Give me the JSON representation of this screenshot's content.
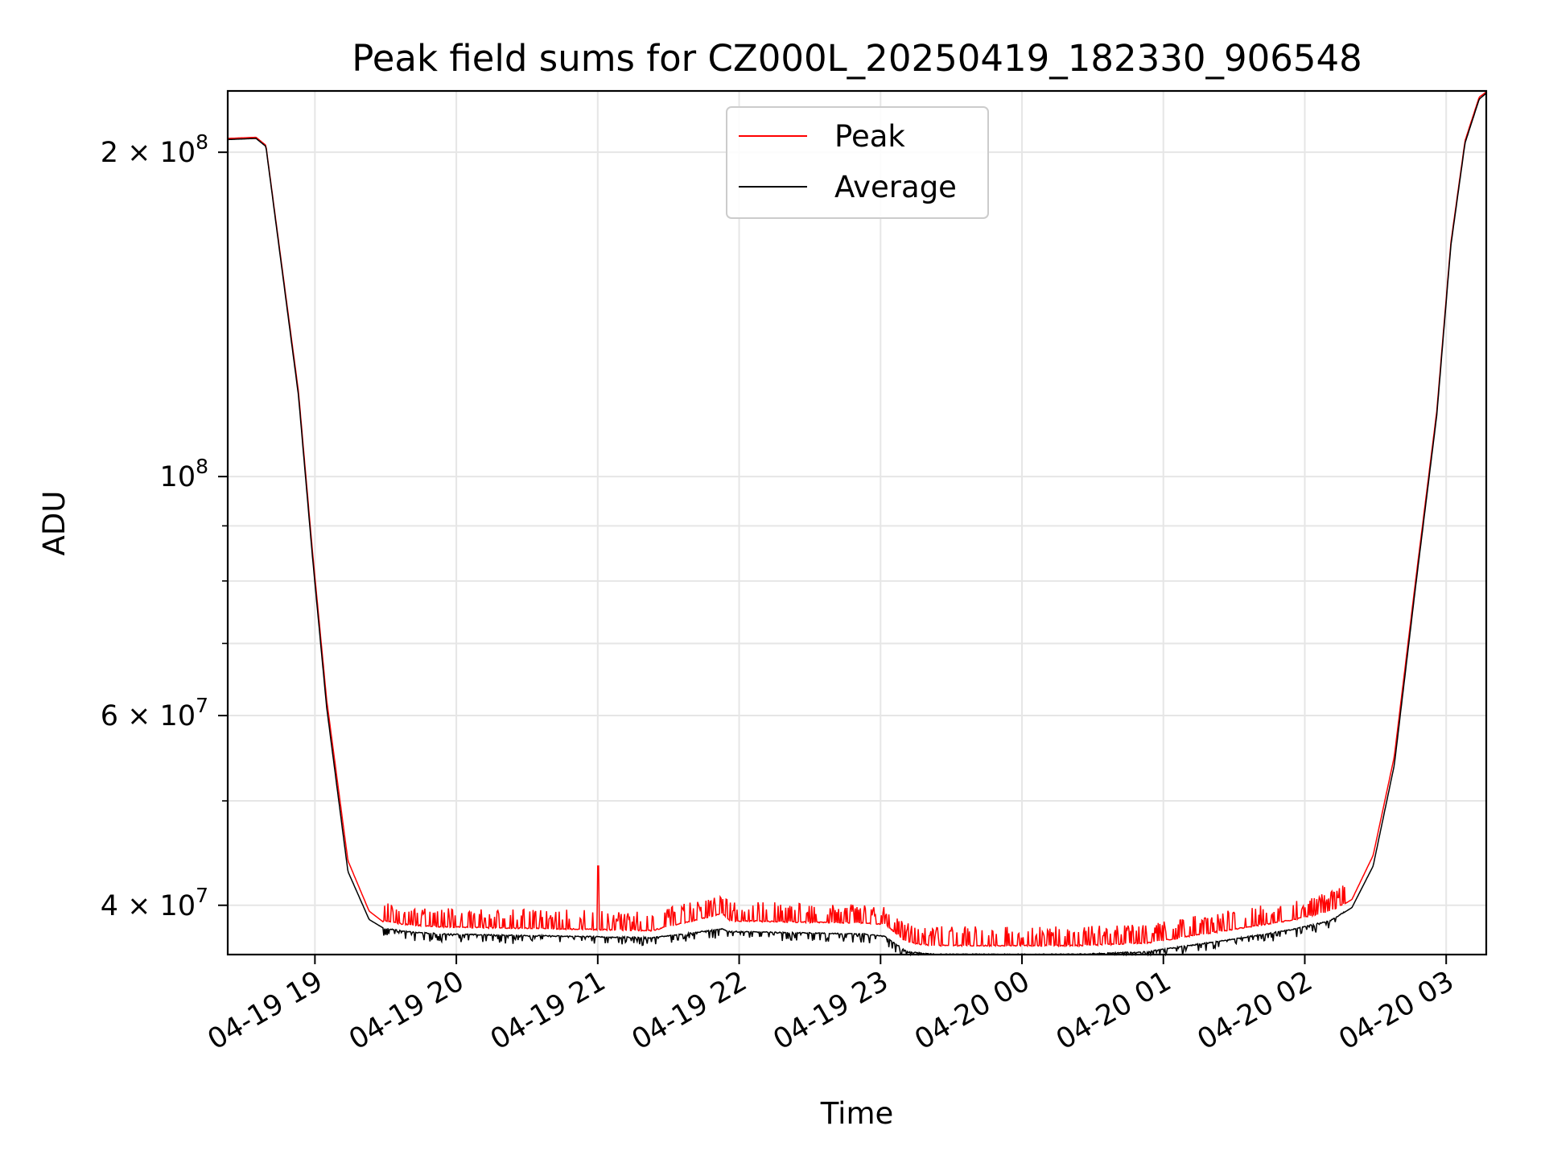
{
  "chart_data": {
    "type": "line",
    "title": "Peak field sums for CZ000L_20250419_182330_906548",
    "xlabel": "Time",
    "ylabel": "ADU",
    "yscale": "log",
    "ylim": [
      36000000,
      228000000
    ],
    "xlim": [
      "2025-04-19 18:23",
      "2025-04-20 03:17"
    ],
    "grid": true,
    "legend_location": "upper center",
    "x_ticks": [
      {
        "time": "2025-04-19 19:00",
        "label": "04-19 19"
      },
      {
        "time": "2025-04-19 20:00",
        "label": "04-19 20"
      },
      {
        "time": "2025-04-19 21:00",
        "label": "04-19 21"
      },
      {
        "time": "2025-04-19 22:00",
        "label": "04-19 22"
      },
      {
        "time": "2025-04-19 23:00",
        "label": "04-19 23"
      },
      {
        "time": "2025-04-20 00:00",
        "label": "04-20 00"
      },
      {
        "time": "2025-04-20 01:00",
        "label": "04-20 01"
      },
      {
        "time": "2025-04-20 02:00",
        "label": "04-20 02"
      },
      {
        "time": "2025-04-20 03:00",
        "label": "04-20 03"
      }
    ],
    "y_ticks": [
      {
        "value": 40000000,
        "base": "4",
        "exp": "7"
      },
      {
        "value": 60000000,
        "base": "6",
        "exp": "7"
      },
      {
        "value": 100000000,
        "base": "",
        "exp": "8"
      },
      {
        "value": 200000000,
        "base": "2",
        "exp": "8"
      }
    ],
    "y_minor_ticks": [
      50000000,
      70000000,
      80000000,
      90000000
    ],
    "x_hours_from_start": [
      0,
      0.2,
      0.27,
      0.5,
      0.6,
      0.7,
      0.85,
      1.0,
      1.1,
      1.25,
      1.5,
      2.0,
      2.5,
      3.0,
      3.5,
      3.55,
      4.0,
      4.5,
      4.65,
      4.8,
      4.9,
      5.0,
      5.5,
      6.0,
      6.5,
      7.0,
      7.5,
      7.8,
      7.95,
      8.1,
      8.25,
      8.4,
      8.55,
      8.65,
      8.75,
      8.85,
      8.91
    ],
    "series": [
      {
        "name": "Peak",
        "color": "#ff0000",
        "values": [
          206000000,
          206500000,
          203000000,
          120000000,
          85000000,
          62000000,
          44000000,
          39500000,
          38600000,
          38300000,
          38100000,
          38000000,
          37900000,
          37800000,
          39200000,
          38600000,
          38500000,
          38400000,
          38300000,
          36900000,
          36700000,
          36600000,
          36600000,
          36600000,
          36800000,
          37700000,
          38600000,
          39400000,
          40500000,
          44500000,
          55000000,
          80000000,
          115000000,
          165000000,
          205000000,
          225000000,
          228000000
        ]
      },
      {
        "name": "Average",
        "color": "#000000",
        "values": [
          205500000,
          206000000,
          202500000,
          119000000,
          84000000,
          61000000,
          43000000,
          38800000,
          38100000,
          37800000,
          37600000,
          37500000,
          37400000,
          37300000,
          38000000,
          37800000,
          37700000,
          37600000,
          37400000,
          36200000,
          36100000,
          36000000,
          36000000,
          36000000,
          36200000,
          37000000,
          37900000,
          38700000,
          39800000,
          43500000,
          54000000,
          79000000,
          114000000,
          164000000,
          204000000,
          224000000,
          227500000
        ]
      }
    ],
    "annotations": [
      {
        "series": "Peak",
        "hours_from_start": 2.62,
        "value": 43500000,
        "note": "isolated spike"
      }
    ]
  }
}
